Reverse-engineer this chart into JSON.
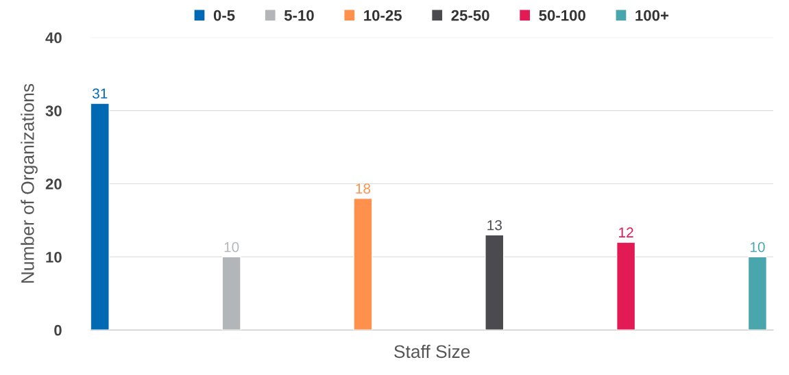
{
  "chart_data": {
    "type": "bar",
    "xlabel": "Staff Size",
    "ylabel": "Number of Organizations",
    "categories": [
      null,
      null,
      null,
      null,
      null,
      null
    ],
    "series": [
      {
        "name": "0-5",
        "color": "#0069b4",
        "values": [
          31,
          null,
          null,
          null,
          null,
          null
        ]
      },
      {
        "name": "5-10",
        "color": "#b3b6b8",
        "values": [
          null,
          10,
          null,
          null,
          null,
          null
        ]
      },
      {
        "name": "10-25",
        "color": "#ff914d",
        "values": [
          null,
          null,
          18,
          null,
          null,
          null
        ]
      },
      {
        "name": "25-50",
        "color": "#4a4a4f",
        "values": [
          null,
          null,
          null,
          13,
          null,
          null
        ]
      },
      {
        "name": "50-100",
        "color": "#e31b54",
        "values": [
          null,
          null,
          null,
          null,
          12,
          null
        ]
      },
      {
        "name": "100+",
        "color": "#4aa6ad",
        "values": [
          null,
          null,
          null,
          null,
          null,
          10
        ]
      }
    ],
    "ylim": [
      0,
      40
    ],
    "yticks": [
      0,
      10,
      20,
      30,
      40
    ],
    "grid": "y",
    "legend": "top",
    "data_labels": true
  }
}
